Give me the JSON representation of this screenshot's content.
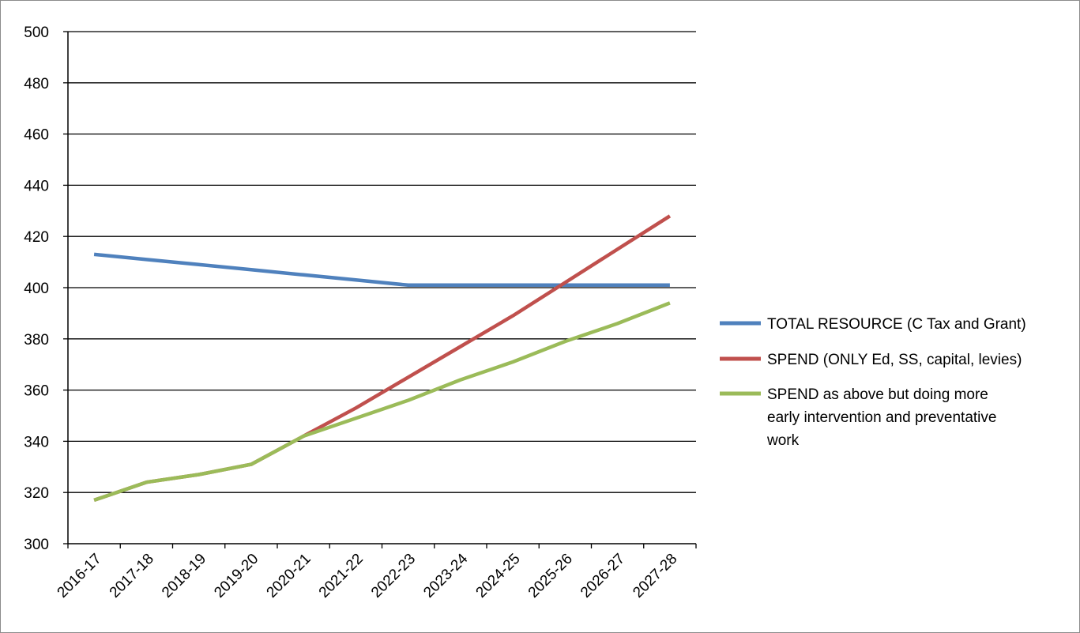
{
  "chart_data": {
    "type": "line",
    "title": "",
    "xlabel": "",
    "ylabel": "",
    "ylim": [
      300,
      500
    ],
    "ytick_step": 20,
    "grid": "horizontal",
    "legend_position": "right",
    "categories": [
      "2016-17",
      "2017-18",
      "2018-19",
      "2019-20",
      "2020-21",
      "2021-22",
      "2022-23",
      "2023-24",
      "2024-25",
      "2025-26",
      "2026-27",
      "2027-28"
    ],
    "series": [
      {
        "name": "TOTAL RESOURCE (C Tax and Grant)",
        "color": "#4f81bd",
        "values": [
          413,
          411,
          409,
          407,
          405,
          403,
          401,
          401,
          401,
          401,
          401,
          401
        ]
      },
      {
        "name": "SPEND (ONLY Ed, SS, capital, levies)",
        "color": "#c0504d",
        "values": [
          317,
          324,
          327,
          331,
          342,
          353,
          365,
          377,
          389,
          402,
          415,
          428
        ]
      },
      {
        "name": "SPEND as above but doing more early intervention and preventative work",
        "color": "#9bbb59",
        "values": [
          317,
          324,
          327,
          331,
          342,
          349,
          356,
          364,
          371,
          379,
          386,
          394
        ]
      }
    ],
    "legend_lines": [
      [
        "TOTAL RESOURCE (C Tax and Grant)"
      ],
      [
        "SPEND (ONLY Ed, SS, capital, levies)"
      ],
      [
        "SPEND as above but doing more",
        "early intervention and preventative",
        "work"
      ]
    ]
  }
}
